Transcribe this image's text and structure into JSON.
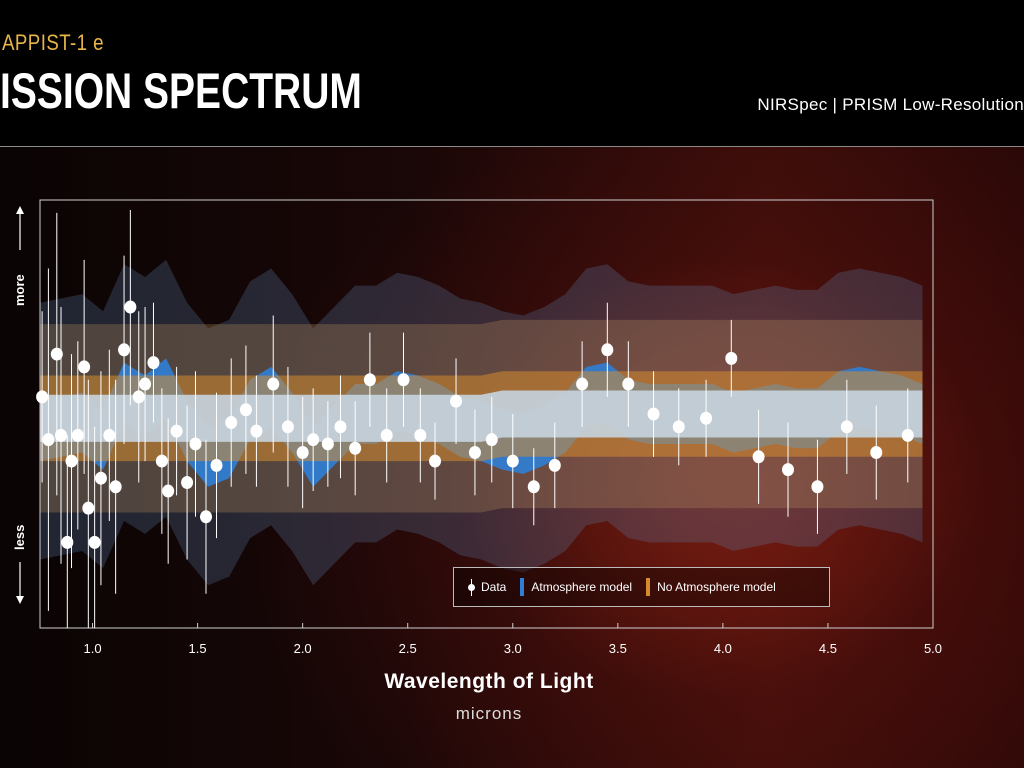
{
  "header": {
    "planet": "APPIST-1 e",
    "title": "ISSION SPECTRUM",
    "instrument": "NIRSpec | PRISM Low-Resolution"
  },
  "colors": {
    "atmosphere": "#2f7fd6",
    "no_atmosphere": "#d68a2e",
    "accent": "#e8b54a"
  },
  "chart_data": {
    "type": "scatter",
    "xlabel": "Wavelength of Light",
    "xunits": "microns",
    "ylabel_top": "more",
    "ylabel_bottom": "less",
    "xlim": [
      0.75,
      5.0
    ],
    "ylim": [
      0,
      100
    ],
    "x_ticks": [
      "1.0",
      "1.5",
      "2.0",
      "2.5",
      "3.0",
      "3.5",
      "4.0",
      "4.5",
      "5.0"
    ],
    "x_tick_values": [
      1.0,
      1.5,
      2.0,
      2.5,
      3.0,
      3.5,
      4.0,
      4.5,
      5.0
    ],
    "legend": {
      "data": "Data",
      "atmosphere": "Atmosphere model",
      "no_atmosphere": "No Atmosphere model"
    },
    "series": [
      {
        "name": "Data",
        "points": [
          [
            0.76,
            54,
            20
          ],
          [
            0.79,
            44,
            40
          ],
          [
            0.83,
            64,
            33
          ],
          [
            0.85,
            45,
            30
          ],
          [
            0.88,
            20,
            25
          ],
          [
            0.9,
            39,
            25
          ],
          [
            0.93,
            45,
            22
          ],
          [
            0.96,
            61,
            25
          ],
          [
            0.98,
            28,
            30
          ],
          [
            1.01,
            20,
            27
          ],
          [
            1.04,
            35,
            25
          ],
          [
            1.08,
            45,
            20
          ],
          [
            1.11,
            33,
            25
          ],
          [
            1.15,
            65,
            22
          ],
          [
            1.18,
            75,
            23
          ],
          [
            1.22,
            54,
            20
          ],
          [
            1.25,
            57,
            18
          ],
          [
            1.29,
            62,
            14
          ],
          [
            1.33,
            39,
            17
          ],
          [
            1.36,
            32,
            17
          ],
          [
            1.4,
            46,
            15
          ],
          [
            1.45,
            34,
            18
          ],
          [
            1.49,
            43,
            17
          ],
          [
            1.54,
            26,
            18
          ],
          [
            1.59,
            38,
            17
          ],
          [
            1.66,
            48,
            15
          ],
          [
            1.73,
            51,
            15
          ],
          [
            1.78,
            46,
            13
          ],
          [
            1.86,
            57,
            16
          ],
          [
            1.93,
            47,
            14
          ],
          [
            2.0,
            41,
            13
          ],
          [
            2.05,
            44,
            12
          ],
          [
            2.12,
            43,
            10
          ],
          [
            2.18,
            47,
            12
          ],
          [
            2.25,
            42,
            11
          ],
          [
            2.32,
            58,
            11
          ],
          [
            2.4,
            45,
            11
          ],
          [
            2.48,
            58,
            11
          ],
          [
            2.56,
            45,
            11
          ],
          [
            2.63,
            39,
            9
          ],
          [
            2.73,
            53,
            10
          ],
          [
            2.82,
            41,
            10
          ],
          [
            2.9,
            44,
            10
          ],
          [
            3.0,
            39,
            11
          ],
          [
            3.1,
            33,
            9
          ],
          [
            3.2,
            38,
            10
          ],
          [
            3.33,
            57,
            10
          ],
          [
            3.45,
            65,
            11
          ],
          [
            3.55,
            57,
            10
          ],
          [
            3.67,
            50,
            10
          ],
          [
            3.79,
            47,
            9
          ],
          [
            3.92,
            49,
            9
          ],
          [
            4.04,
            63,
            9
          ],
          [
            4.17,
            40,
            11
          ],
          [
            4.31,
            37,
            11
          ],
          [
            4.45,
            33,
            11
          ],
          [
            4.59,
            47,
            11
          ],
          [
            4.73,
            41,
            11
          ],
          [
            4.88,
            45,
            11
          ]
        ]
      },
      {
        "name": "Atmosphere model",
        "x": [
          0.75,
          0.85,
          0.95,
          1.05,
          1.15,
          1.25,
          1.35,
          1.45,
          1.55,
          1.65,
          1.75,
          1.85,
          1.95,
          2.05,
          2.15,
          2.25,
          2.35,
          2.45,
          2.55,
          2.65,
          2.75,
          2.85,
          2.95,
          3.05,
          3.15,
          3.25,
          3.35,
          3.45,
          3.55,
          3.65,
          3.75,
          3.85,
          3.95,
          4.05,
          4.15,
          4.25,
          4.35,
          4.45,
          4.55,
          4.65,
          4.75,
          4.85,
          4.95
        ],
        "values": [
          46,
          47,
          48,
          44,
          55,
          52,
          56,
          46,
          40,
          42,
          51,
          54,
          48,
          40,
          45,
          50,
          50,
          53,
          52,
          50,
          47,
          46,
          44,
          43,
          45,
          48,
          54,
          55,
          51,
          50,
          50,
          50,
          50,
          48,
          49,
          50,
          49,
          49,
          53,
          54,
          53,
          52,
          50
        ]
      },
      {
        "name": "No Atmosphere model",
        "x": [
          0.75,
          0.85,
          0.95,
          1.05,
          1.15,
          1.25,
          1.35,
          1.45,
          1.55,
          1.65,
          1.75,
          1.85,
          1.95,
          2.05,
          2.15,
          2.25,
          2.35,
          2.45,
          2.55,
          2.65,
          2.75,
          2.85,
          2.95,
          3.05,
          3.15,
          3.25,
          3.35,
          3.45,
          3.55,
          3.65,
          3.75,
          3.85,
          3.95,
          4.05,
          4.15,
          4.25,
          4.35,
          4.45,
          4.55,
          4.65,
          4.75,
          4.85,
          4.95
        ],
        "values": [
          49,
          49,
          49,
          49,
          49,
          49,
          49,
          49,
          49,
          49,
          49,
          49,
          49,
          49,
          49,
          49,
          49,
          49,
          49,
          49,
          49,
          49,
          50,
          50,
          50,
          50,
          50,
          50,
          50,
          50,
          50,
          50,
          50,
          50,
          50,
          50,
          50,
          50,
          50,
          50,
          50,
          50,
          50
        ]
      }
    ]
  }
}
